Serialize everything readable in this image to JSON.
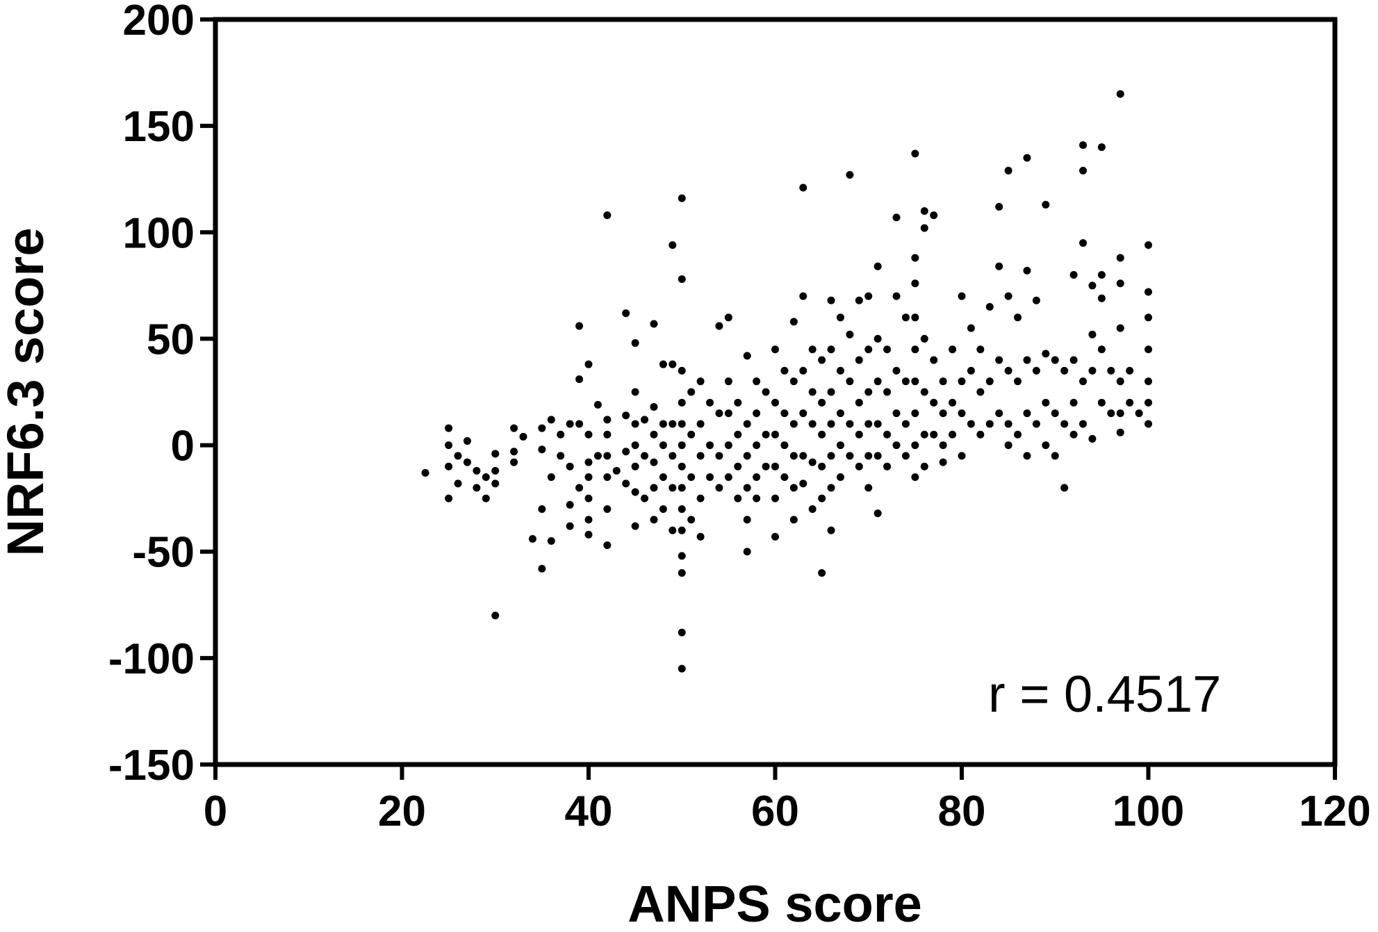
{
  "chart_data": {
    "type": "scatter",
    "xlabel": "ANPS score",
    "ylabel": "NRF6.3 score",
    "xlim": [
      0,
      120
    ],
    "ylim": [
      -150,
      200
    ],
    "xticks": [
      0,
      20,
      40,
      60,
      80,
      100,
      120
    ],
    "yticks": [
      -150,
      -100,
      -50,
      0,
      50,
      100,
      150,
      200
    ],
    "grid": false,
    "legend": "none",
    "annotation": "r = 0.4517",
    "marker_color": "#000000",
    "points": [
      [
        22.5,
        -13
      ],
      [
        25,
        8
      ],
      [
        25,
        0
      ],
      [
        25,
        -10
      ],
      [
        25,
        -25
      ],
      [
        26,
        -5
      ],
      [
        26,
        -18
      ],
      [
        27,
        2
      ],
      [
        27,
        -8
      ],
      [
        28,
        -12
      ],
      [
        28,
        -20
      ],
      [
        29,
        -15
      ],
      [
        29,
        -25
      ],
      [
        30,
        -4
      ],
      [
        30,
        -12
      ],
      [
        30,
        -18
      ],
      [
        30,
        -80
      ],
      [
        32,
        8
      ],
      [
        32,
        -3
      ],
      [
        32,
        -8
      ],
      [
        33,
        4
      ],
      [
        34,
        -44
      ],
      [
        35,
        8
      ],
      [
        35,
        -2
      ],
      [
        35,
        -30
      ],
      [
        35,
        -58
      ],
      [
        36,
        12
      ],
      [
        36,
        -15
      ],
      [
        36,
        -45
      ],
      [
        37,
        5
      ],
      [
        37,
        -5
      ],
      [
        38,
        10
      ],
      [
        38,
        -10
      ],
      [
        38,
        -28
      ],
      [
        38,
        -38
      ],
      [
        39,
        56
      ],
      [
        39,
        31
      ],
      [
        39,
        10
      ],
      [
        39,
        -20
      ],
      [
        40,
        38
      ],
      [
        40,
        5
      ],
      [
        40,
        -8
      ],
      [
        40,
        -15
      ],
      [
        40,
        -25
      ],
      [
        40,
        -35
      ],
      [
        40,
        -42
      ],
      [
        41,
        19
      ],
      [
        41,
        -5
      ],
      [
        42,
        108
      ],
      [
        42,
        12
      ],
      [
        42,
        5
      ],
      [
        42,
        -5
      ],
      [
        42,
        -15
      ],
      [
        42,
        -30
      ],
      [
        42,
        -47
      ],
      [
        43,
        -12
      ],
      [
        44,
        62
      ],
      [
        44,
        14
      ],
      [
        44,
        -3
      ],
      [
        44,
        -18
      ],
      [
        45,
        48
      ],
      [
        45,
        25
      ],
      [
        45,
        10
      ],
      [
        45,
        0
      ],
      [
        45,
        -10
      ],
      [
        45,
        -22
      ],
      [
        45,
        -38
      ],
      [
        46,
        12
      ],
      [
        46,
        -5
      ],
      [
        46,
        -25
      ],
      [
        47,
        57
      ],
      [
        47,
        18
      ],
      [
        47,
        5
      ],
      [
        47,
        -8
      ],
      [
        47,
        -20
      ],
      [
        47,
        -35
      ],
      [
        48,
        38
      ],
      [
        48,
        10
      ],
      [
        48,
        0
      ],
      [
        48,
        -15
      ],
      [
        48,
        -30
      ],
      [
        49,
        94
      ],
      [
        49,
        38
      ],
      [
        49,
        10
      ],
      [
        49,
        -5
      ],
      [
        49,
        -20
      ],
      [
        49,
        -40
      ],
      [
        50,
        116
      ],
      [
        50,
        78
      ],
      [
        50,
        35
      ],
      [
        50,
        20
      ],
      [
        50,
        10
      ],
      [
        50,
        0
      ],
      [
        50,
        -10
      ],
      [
        50,
        -20
      ],
      [
        50,
        -30
      ],
      [
        50,
        -40
      ],
      [
        50,
        -52
      ],
      [
        50,
        -60
      ],
      [
        50,
        -88
      ],
      [
        50,
        -105
      ],
      [
        51,
        25
      ],
      [
        51,
        5
      ],
      [
        51,
        -15
      ],
      [
        51,
        -35
      ],
      [
        52,
        30
      ],
      [
        52,
        10
      ],
      [
        52,
        -5
      ],
      [
        52,
        -25
      ],
      [
        52,
        -43
      ],
      [
        53,
        20
      ],
      [
        53,
        0
      ],
      [
        53,
        -15
      ],
      [
        54,
        56
      ],
      [
        54,
        15
      ],
      [
        54,
        -5
      ],
      [
        54,
        -20
      ],
      [
        55,
        60
      ],
      [
        55,
        30
      ],
      [
        55,
        15
      ],
      [
        55,
        0
      ],
      [
        55,
        -15
      ],
      [
        56,
        20
      ],
      [
        56,
        5
      ],
      [
        56,
        -10
      ],
      [
        56,
        -25
      ],
      [
        57,
        42
      ],
      [
        57,
        10
      ],
      [
        57,
        -5
      ],
      [
        57,
        -20
      ],
      [
        57,
        -35
      ],
      [
        57,
        -50
      ],
      [
        58,
        30
      ],
      [
        58,
        15
      ],
      [
        58,
        0
      ],
      [
        58,
        -15
      ],
      [
        58,
        -25
      ],
      [
        59,
        25
      ],
      [
        59,
        5
      ],
      [
        59,
        -10
      ],
      [
        60,
        45
      ],
      [
        60,
        20
      ],
      [
        60,
        5
      ],
      [
        60,
        -10
      ],
      [
        60,
        -25
      ],
      [
        60,
        -43
      ],
      [
        61,
        35
      ],
      [
        61,
        15
      ],
      [
        61,
        0
      ],
      [
        61,
        -15
      ],
      [
        62,
        58
      ],
      [
        62,
        30
      ],
      [
        62,
        10
      ],
      [
        62,
        -5
      ],
      [
        62,
        -20
      ],
      [
        62,
        -35
      ],
      [
        63,
        121
      ],
      [
        63,
        70
      ],
      [
        63,
        35
      ],
      [
        63,
        15
      ],
      [
        63,
        -5
      ],
      [
        63,
        -18
      ],
      [
        64,
        45
      ],
      [
        64,
        25
      ],
      [
        64,
        10
      ],
      [
        64,
        -8
      ],
      [
        64,
        -30
      ],
      [
        65,
        40
      ],
      [
        65,
        20
      ],
      [
        65,
        5
      ],
      [
        65,
        -10
      ],
      [
        65,
        -25
      ],
      [
        65,
        -60
      ],
      [
        66,
        68
      ],
      [
        66,
        45
      ],
      [
        66,
        25
      ],
      [
        66,
        10
      ],
      [
        66,
        -5
      ],
      [
        66,
        -20
      ],
      [
        66,
        -40
      ],
      [
        67,
        60
      ],
      [
        67,
        35
      ],
      [
        67,
        15
      ],
      [
        67,
        0
      ],
      [
        67,
        -15
      ],
      [
        68,
        127
      ],
      [
        68,
        52
      ],
      [
        68,
        30
      ],
      [
        68,
        10
      ],
      [
        68,
        -5
      ],
      [
        69,
        68
      ],
      [
        69,
        40
      ],
      [
        69,
        20
      ],
      [
        69,
        5
      ],
      [
        69,
        -10
      ],
      [
        70,
        70
      ],
      [
        70,
        45
      ],
      [
        70,
        25
      ],
      [
        70,
        10
      ],
      [
        70,
        -5
      ],
      [
        70,
        -20
      ],
      [
        71,
        84
      ],
      [
        71,
        50
      ],
      [
        71,
        30
      ],
      [
        71,
        10
      ],
      [
        71,
        -5
      ],
      [
        71,
        -32
      ],
      [
        72,
        45
      ],
      [
        72,
        25
      ],
      [
        72,
        5
      ],
      [
        72,
        -10
      ],
      [
        73,
        107
      ],
      [
        73,
        70
      ],
      [
        73,
        35
      ],
      [
        73,
        15
      ],
      [
        73,
        0
      ],
      [
        74,
        60
      ],
      [
        74,
        30
      ],
      [
        74,
        10
      ],
      [
        74,
        -5
      ],
      [
        75,
        137
      ],
      [
        75,
        88
      ],
      [
        75,
        76
      ],
      [
        75,
        60
      ],
      [
        75,
        45
      ],
      [
        75,
        30
      ],
      [
        75,
        15
      ],
      [
        75,
        0
      ],
      [
        75,
        -15
      ],
      [
        76,
        110
      ],
      [
        76,
        102
      ],
      [
        76,
        50
      ],
      [
        76,
        25
      ],
      [
        76,
        5
      ],
      [
        76,
        -10
      ],
      [
        77,
        108
      ],
      [
        77,
        40
      ],
      [
        77,
        20
      ],
      [
        77,
        5
      ],
      [
        78,
        30
      ],
      [
        78,
        15
      ],
      [
        78,
        0
      ],
      [
        78,
        -8
      ],
      [
        79,
        45
      ],
      [
        79,
        20
      ],
      [
        79,
        5
      ],
      [
        80,
        70
      ],
      [
        80,
        30
      ],
      [
        80,
        15
      ],
      [
        80,
        -5
      ],
      [
        81,
        55
      ],
      [
        81,
        35
      ],
      [
        81,
        10
      ],
      [
        82,
        45
      ],
      [
        82,
        25
      ],
      [
        82,
        5
      ],
      [
        83,
        65
      ],
      [
        83,
        30
      ],
      [
        83,
        10
      ],
      [
        84,
        112
      ],
      [
        84,
        84
      ],
      [
        84,
        40
      ],
      [
        84,
        15
      ],
      [
        85,
        129
      ],
      [
        85,
        70
      ],
      [
        85,
        35
      ],
      [
        85,
        10
      ],
      [
        85,
        0
      ],
      [
        86,
        60
      ],
      [
        86,
        30
      ],
      [
        86,
        5
      ],
      [
        87,
        135
      ],
      [
        87,
        82
      ],
      [
        87,
        40
      ],
      [
        87,
        15
      ],
      [
        87,
        -5
      ],
      [
        88,
        68
      ],
      [
        88,
        35
      ],
      [
        88,
        10
      ],
      [
        89,
        113
      ],
      [
        89,
        43
      ],
      [
        89,
        20
      ],
      [
        89,
        0
      ],
      [
        90,
        40
      ],
      [
        90,
        15
      ],
      [
        90,
        -5
      ],
      [
        91,
        35
      ],
      [
        91,
        10
      ],
      [
        91,
        -20
      ],
      [
        92,
        80
      ],
      [
        92,
        40
      ],
      [
        92,
        20
      ],
      [
        92,
        5
      ],
      [
        93,
        141
      ],
      [
        93,
        129
      ],
      [
        93,
        95
      ],
      [
        93,
        30
      ],
      [
        93,
        10
      ],
      [
        94,
        75
      ],
      [
        94,
        52
      ],
      [
        94,
        35
      ],
      [
        94,
        3
      ],
      [
        95,
        140
      ],
      [
        95,
        80
      ],
      [
        95,
        69
      ],
      [
        95,
        45
      ],
      [
        95,
        20
      ],
      [
        96,
        35
      ],
      [
        96,
        15
      ],
      [
        97,
        165
      ],
      [
        97,
        88
      ],
      [
        97,
        76
      ],
      [
        97,
        55
      ],
      [
        97,
        30
      ],
      [
        97,
        15
      ],
      [
        97,
        6
      ],
      [
        98,
        20
      ],
      [
        98,
        35
      ],
      [
        99,
        15
      ],
      [
        100,
        94
      ],
      [
        100,
        72
      ],
      [
        100,
        60
      ],
      [
        100,
        45
      ],
      [
        100,
        30
      ],
      [
        100,
        20
      ],
      [
        100,
        10
      ]
    ]
  }
}
